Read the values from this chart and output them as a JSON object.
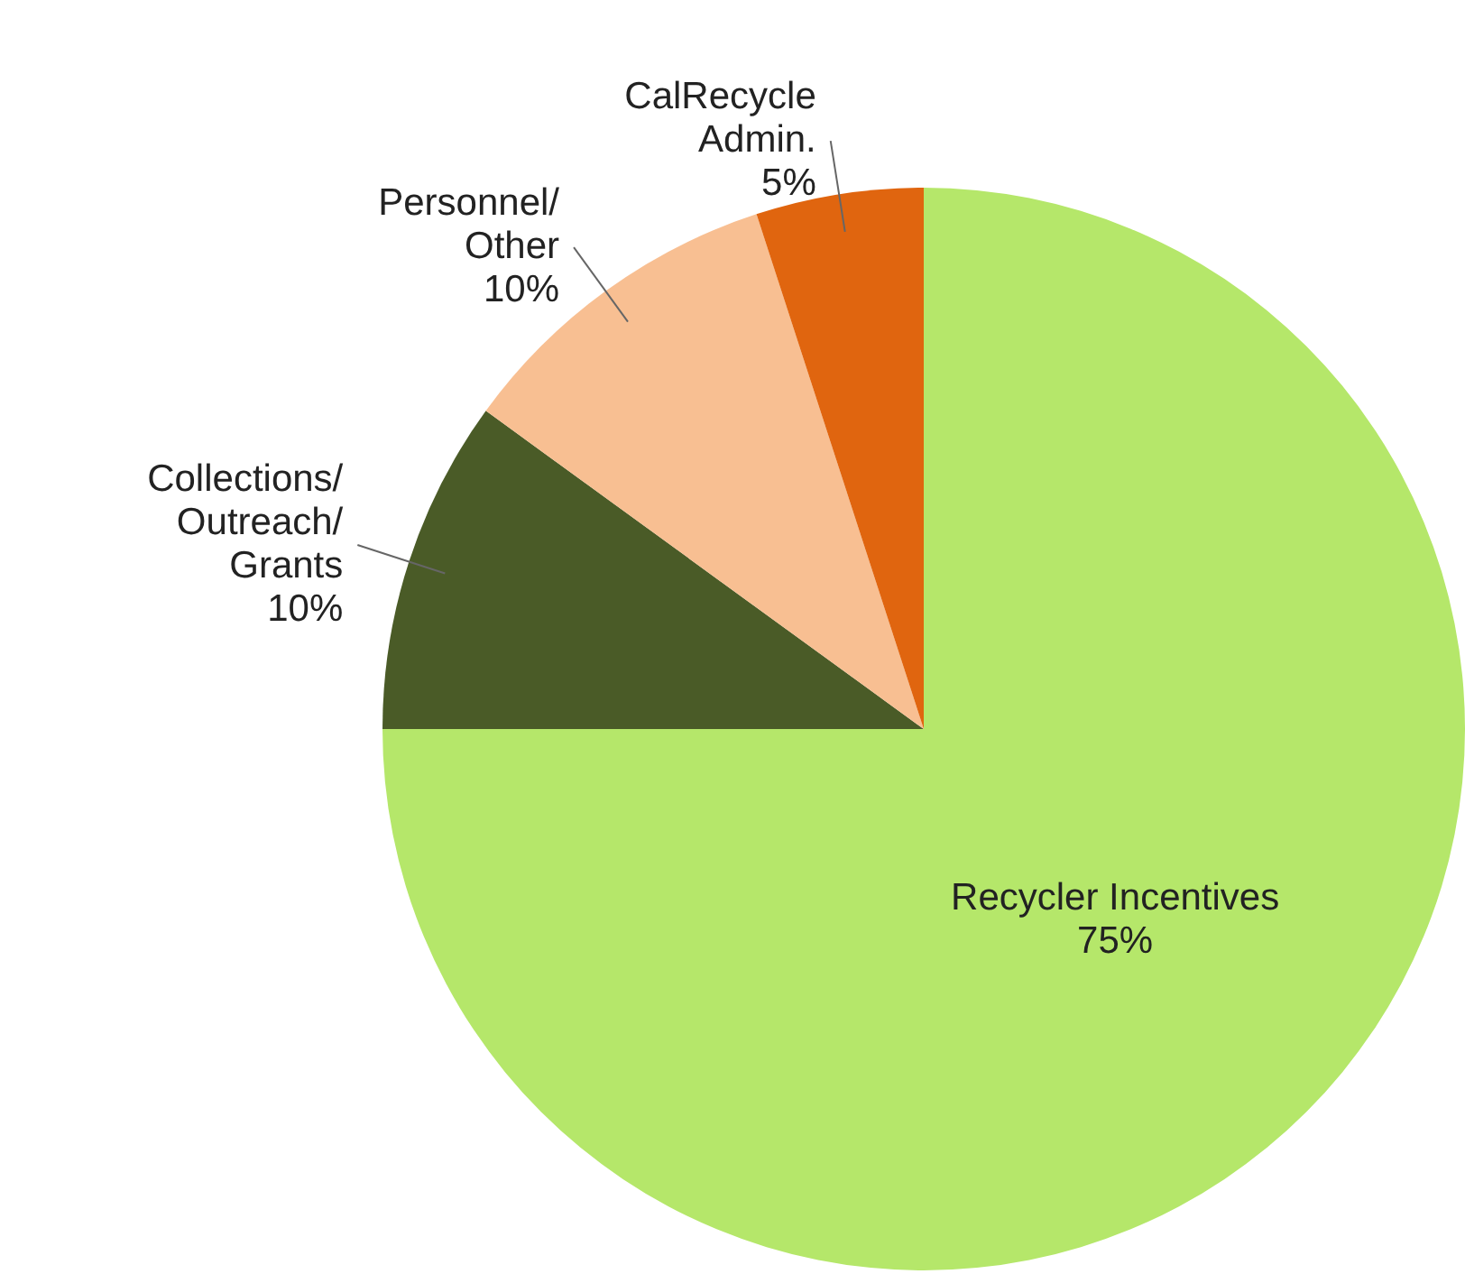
{
  "chart_data": {
    "type": "pie",
    "categories": [
      "Recycler Incentives",
      "Collections/\nOutreach/\nGrants",
      "Personnel/\nOther",
      "CalRecycle\nAdmin."
    ],
    "values": [
      75,
      10,
      10,
      5
    ],
    "colors": [
      "#b5e76a",
      "#4a5b27",
      "#f8bf92",
      "#e0650f"
    ],
    "value_labels": [
      "75%",
      "10%",
      "10%",
      "5%"
    ]
  }
}
